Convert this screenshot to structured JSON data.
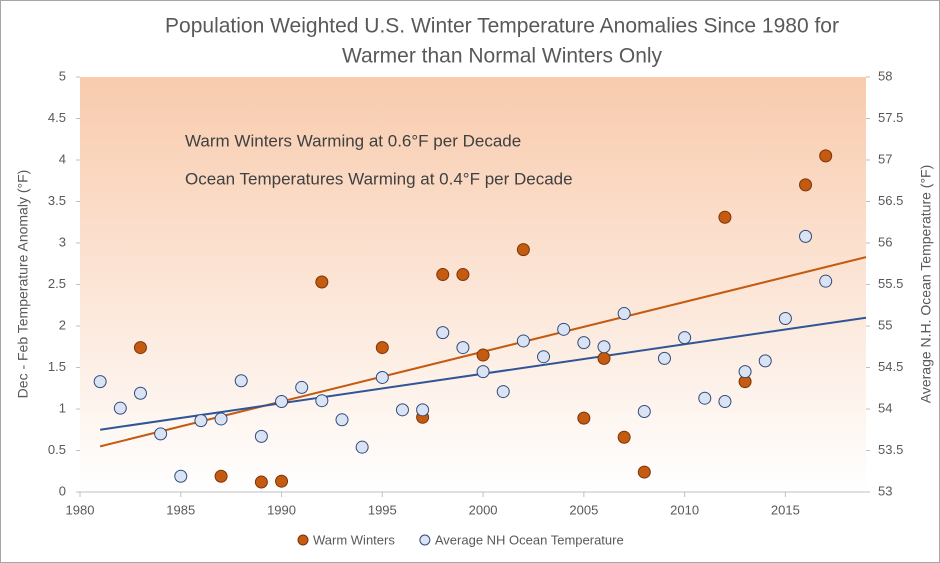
{
  "chart_data": {
    "type": "scatter",
    "title": [
      "Population Weighted U.S. Winter Temperature Anomalies Since 1980 for",
      "Warmer than Normal Winters Only"
    ],
    "annotations": [
      "Warm Winters Warming at 0.6°F per Decade",
      "Ocean Temperatures Warming at 0.4°F  per Decade"
    ],
    "y_label": "Dec - Feb  Temperature Anomaly (°F)",
    "y2_label": "Average N.H. Ocean Temperature  (°F)",
    "xlim": [
      1980,
      2019
    ],
    "xticks": [
      1980,
      1985,
      1990,
      1995,
      2000,
      2005,
      2010,
      2015
    ],
    "ylim": [
      0,
      5
    ],
    "yticks": [
      0,
      0.5,
      1,
      1.5,
      2,
      2.5,
      3,
      3.5,
      4,
      4.5,
      5
    ],
    "y2lim": [
      53,
      58
    ],
    "y2ticks": [
      53,
      53.5,
      54,
      54.5,
      55,
      55.5,
      56,
      56.5,
      57,
      57.5,
      58
    ],
    "legend": "bottom",
    "series": [
      {
        "name": "Warm Winters",
        "color": "#c55a11",
        "edge": "#7a3508",
        "x": [
          1983,
          1987,
          1989,
          1990,
          1992,
          1995,
          1997,
          1998,
          1999,
          2000,
          2002,
          2005,
          2006,
          2007,
          2008,
          2012,
          2013,
          2016,
          2017
        ],
        "values": [
          1.74,
          0.19,
          0.12,
          0.13,
          2.53,
          1.74,
          0.9,
          2.62,
          2.62,
          1.65,
          2.92,
          0.89,
          1.61,
          0.66,
          0.24,
          3.31,
          1.33,
          3.7,
          4.05
        ],
        "trend": {
          "x": [
            1981,
            2019
          ],
          "values": [
            0.55,
            2.83
          ]
        }
      },
      {
        "name": "Average NH Ocean Temperature",
        "color": "#dae3f3",
        "edge": "#2f4b7c",
        "line_color": "#2f5597",
        "axis": "y2",
        "x": [
          1981,
          1982,
          1983,
          1984,
          1985,
          1986,
          1987,
          1988,
          1989,
          1990,
          1991,
          1992,
          1993,
          1994,
          1995,
          1996,
          1997,
          1998,
          1999,
          2000,
          2001,
          2002,
          2003,
          2004,
          2005,
          2006,
          2007,
          2008,
          2009,
          2010,
          2011,
          2012,
          2013,
          2014,
          2015,
          2016,
          2017
        ],
        "values": [
          54.33,
          54.01,
          54.19,
          53.7,
          53.19,
          53.86,
          53.88,
          54.34,
          53.67,
          54.09,
          54.26,
          54.1,
          53.87,
          53.54,
          54.38,
          53.99,
          53.99,
          54.92,
          54.74,
          54.45,
          54.21,
          54.82,
          54.63,
          54.96,
          54.8,
          54.75,
          55.15,
          53.97,
          54.61,
          54.86,
          54.13,
          54.09,
          54.45,
          54.58,
          55.09,
          56.08,
          55.54
        ],
        "trend": {
          "x": [
            1981,
            2019
          ],
          "values": [
            53.75,
            55.1
          ]
        }
      }
    ]
  }
}
